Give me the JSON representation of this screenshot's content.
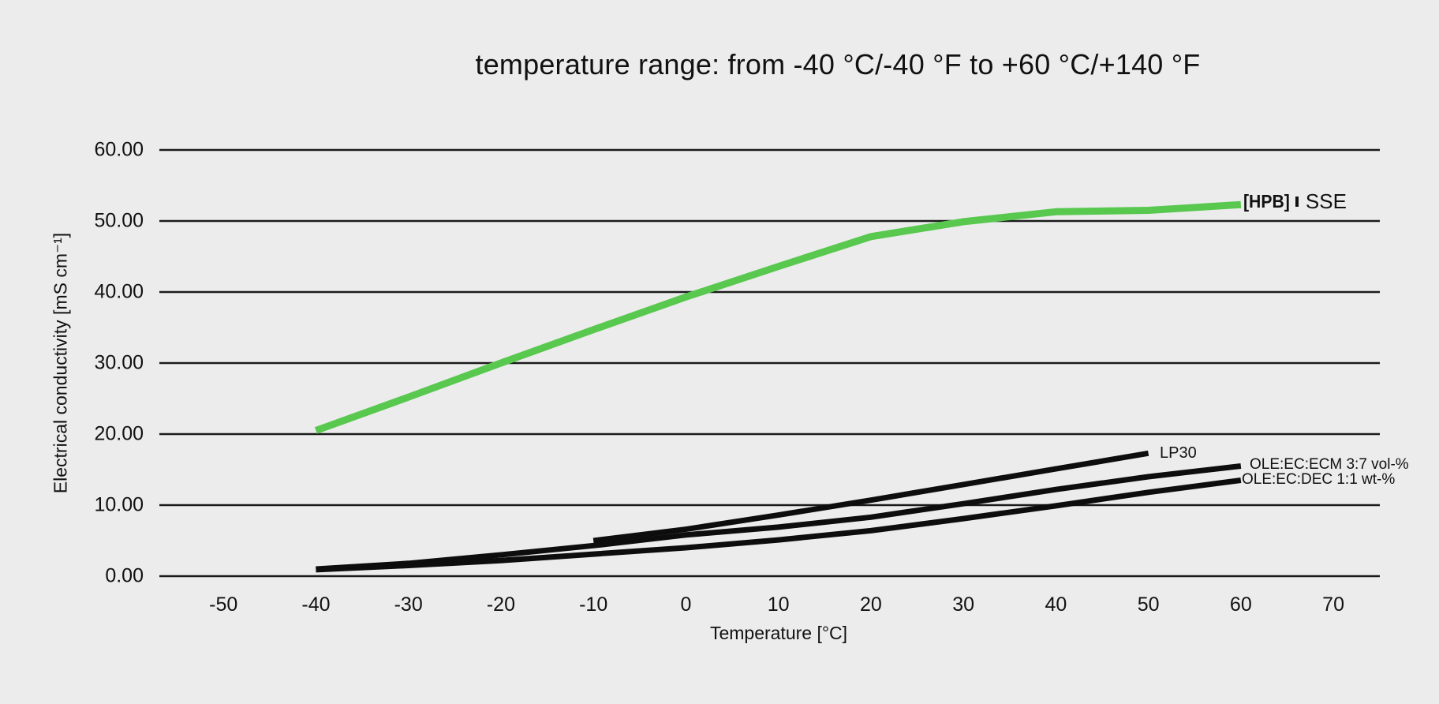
{
  "figure": {
    "title": "temperature range: from -40 °C/-40 °F to +60 °C/+140 °F",
    "background_color": "#ececec"
  },
  "sse_label": {
    "brand": "[HPB]",
    "name": "SSE"
  },
  "chart_data": {
    "type": "line",
    "title": "temperature range: from -40 °C/-40 °F to +60 °C/+140 °F",
    "xlabel": "Temperature [°C]",
    "ylabel": "Electrical conductivity [mS cm⁻¹]",
    "xlim": [
      -58,
      75
    ],
    "ylim": [
      0,
      60
    ],
    "grid": "horizontal-only",
    "grid_color": "#1a1a1a",
    "legend_position": "line-end-labels",
    "x_tick_values": [
      -50,
      -40,
      -30,
      -20,
      -10,
      0,
      10,
      20,
      30,
      40,
      50,
      60,
      70
    ],
    "x_tick_labels": [
      "-50",
      "-40",
      "-30",
      "-20",
      "-10",
      "0",
      "10",
      "20",
      "30",
      "40",
      "50",
      "60",
      "70"
    ],
    "y_tick_values": [
      60,
      50,
      40,
      30,
      20,
      10,
      0
    ],
    "y_tick_labels": [
      "60.00",
      "50.00",
      "40.00",
      "30.00",
      "20.00",
      "10.00",
      "0.00"
    ],
    "series": [
      {
        "name": "[HPB] SSE",
        "color": "#58c84e",
        "stroke_width": 9,
        "x": [
          -40,
          -30,
          -20,
          -10,
          0,
          10,
          20,
          30,
          40,
          50,
          60
        ],
        "y": [
          20.5,
          25.2,
          30.0,
          34.7,
          39.3,
          43.6,
          47.8,
          49.9,
          51.3,
          51.5,
          52.3
        ]
      },
      {
        "name": "LP30",
        "color": "#0d0d0d",
        "stroke_width": 7,
        "x": [
          -10,
          0,
          10,
          20,
          30,
          40,
          50
        ],
        "y": [
          5.0,
          6.6,
          8.6,
          10.7,
          12.9,
          15.1,
          17.3
        ]
      },
      {
        "name": "OLE:EC:ECM 3:7 vol-%",
        "color": "#0d0d0d",
        "stroke_width": 7,
        "x": [
          -40,
          -30,
          -20,
          -10,
          0,
          10,
          20,
          30,
          40,
          50,
          60
        ],
        "y": [
          1.0,
          1.8,
          3.0,
          4.3,
          5.8,
          6.9,
          8.3,
          10.2,
          12.2,
          14.0,
          15.5
        ]
      },
      {
        "name": "OLE:EC:DEC 1:1 wt-%",
        "color": "#0d0d0d",
        "stroke_width": 7,
        "x": [
          -40,
          -30,
          -20,
          -10,
          0,
          10,
          20,
          30,
          40,
          50,
          60
        ],
        "y": [
          0.9,
          1.5,
          2.2,
          3.1,
          4.0,
          5.1,
          6.4,
          8.1,
          9.9,
          11.8,
          13.5
        ]
      }
    ]
  }
}
